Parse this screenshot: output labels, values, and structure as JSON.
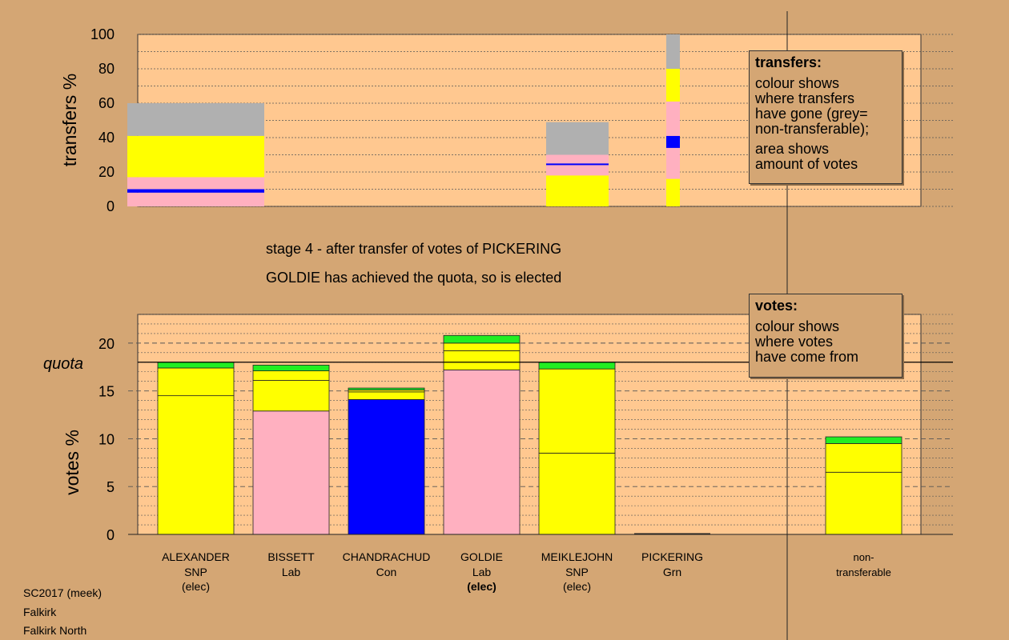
{
  "stage_text": "stage 4 - after transfer of votes of PICKERING",
  "elected_text": "GOLDIE has achieved the quota, so is elected",
  "transfers_note": {
    "heading": "transfers:",
    "line1": "colour shows\nwhere transfers\nhave gone (grey=\nnon-transferable);",
    "line2": "area shows\namount of votes"
  },
  "votes_note": {
    "heading": "votes:",
    "text": "colour shows\nwhere votes\nhave come from"
  },
  "footer": {
    "line1": "SC2017 (meek)",
    "line2": "Falkirk",
    "line3": "Falkirk North"
  },
  "colors": {
    "snp": "#ffff00",
    "lab": "#ffb0c0",
    "con": "#0000ff",
    "grn": "#22ee22",
    "nontransferable": "#b0b0b0",
    "plot_bg": "#ffc890",
    "page_bg": "#d4a674"
  },
  "chart_data": [
    {
      "type": "bar",
      "stacked": true,
      "ylabel": "transfers %",
      "ylim": [
        0,
        100
      ],
      "yticks": [
        0,
        20,
        40,
        60,
        80,
        100
      ],
      "bars": [
        {
          "source": "ALEXANDER",
          "segments": [
            {
              "party": "lab",
              "from": 0,
              "to": 8
            },
            {
              "party": "con",
              "from": 8,
              "to": 10
            },
            {
              "party": "lab",
              "from": 10,
              "to": 17
            },
            {
              "party": "snp",
              "from": 17,
              "to": 41
            },
            {
              "party": "nontransferable",
              "from": 41,
              "to": 60
            }
          ]
        },
        {
          "source": "MEIKLEJOHN",
          "segments": [
            {
              "party": "snp",
              "from": 0,
              "to": 18
            },
            {
              "party": "lab",
              "from": 18,
              "to": 24
            },
            {
              "party": "con",
              "from": 24,
              "to": 25
            },
            {
              "party": "lab",
              "from": 25,
              "to": 30
            },
            {
              "party": "nontransferable",
              "from": 30,
              "to": 49
            }
          ]
        },
        {
          "source": "PICKERING",
          "segments": [
            {
              "party": "snp",
              "from": 0,
              "to": 16
            },
            {
              "party": "lab",
              "from": 16,
              "to": 34
            },
            {
              "party": "con",
              "from": 34,
              "to": 41
            },
            {
              "party": "lab",
              "from": 41,
              "to": 61
            },
            {
              "party": "snp",
              "from": 61,
              "to": 80
            },
            {
              "party": "nontransferable",
              "from": 80,
              "to": 100
            }
          ]
        }
      ]
    },
    {
      "type": "bar",
      "stacked": true,
      "ylabel": "votes %",
      "ylim": [
        0,
        23
      ],
      "yticks": [
        0,
        5,
        10,
        15,
        20
      ],
      "quota": 18,
      "quota_label": "quota",
      "bars": [
        {
          "name": "ALEXANDER",
          "party": "SNP",
          "status": "(elec)",
          "bold_status": false,
          "segments": [
            {
              "party": "snp",
              "value": 14.5
            },
            {
              "party": "snp",
              "value": 2.9
            },
            {
              "party": "grn",
              "value": 0.6
            }
          ]
        },
        {
          "name": "BISSETT",
          "party": "Lab",
          "status": "",
          "bold_status": false,
          "segments": [
            {
              "party": "lab",
              "value": 12.9
            },
            {
              "party": "snp",
              "value": 3.2
            },
            {
              "party": "snp",
              "value": 1.0
            },
            {
              "party": "grn",
              "value": 0.6
            }
          ]
        },
        {
          "name": "CHANDRACHUD",
          "party": "Con",
          "status": "",
          "bold_status": false,
          "segments": [
            {
              "party": "con",
              "value": 14.1
            },
            {
              "party": "snp",
              "value": 0.8
            },
            {
              "party": "snp",
              "value": 0.2
            },
            {
              "party": "grn",
              "value": 0.2
            }
          ]
        },
        {
          "name": "GOLDIE",
          "party": "Lab",
          "status": "(elec)",
          "bold_status": true,
          "segments": [
            {
              "party": "lab",
              "value": 17.2
            },
            {
              "party": "snp",
              "value": 2.0
            },
            {
              "party": "snp",
              "value": 0.8
            },
            {
              "party": "grn",
              "value": 0.8
            }
          ]
        },
        {
          "name": "MEIKLEJOHN",
          "party": "SNP",
          "status": "(elec)",
          "bold_status": false,
          "segments": [
            {
              "party": "snp",
              "value": 8.5
            },
            {
              "party": "snp",
              "value": 8.8
            },
            {
              "party": "grn",
              "value": 0.7
            }
          ]
        },
        {
          "name": "PICKERING",
          "party": "Grn",
          "status": "",
          "bold_status": false,
          "segments": []
        },
        {
          "name": "non-\ntransferable",
          "party": "",
          "status": "",
          "bold_status": false,
          "segments": [
            {
              "party": "snp",
              "value": 6.5
            },
            {
              "party": "snp",
              "value": 3.0
            },
            {
              "party": "grn",
              "value": 0.7
            }
          ]
        }
      ]
    }
  ]
}
